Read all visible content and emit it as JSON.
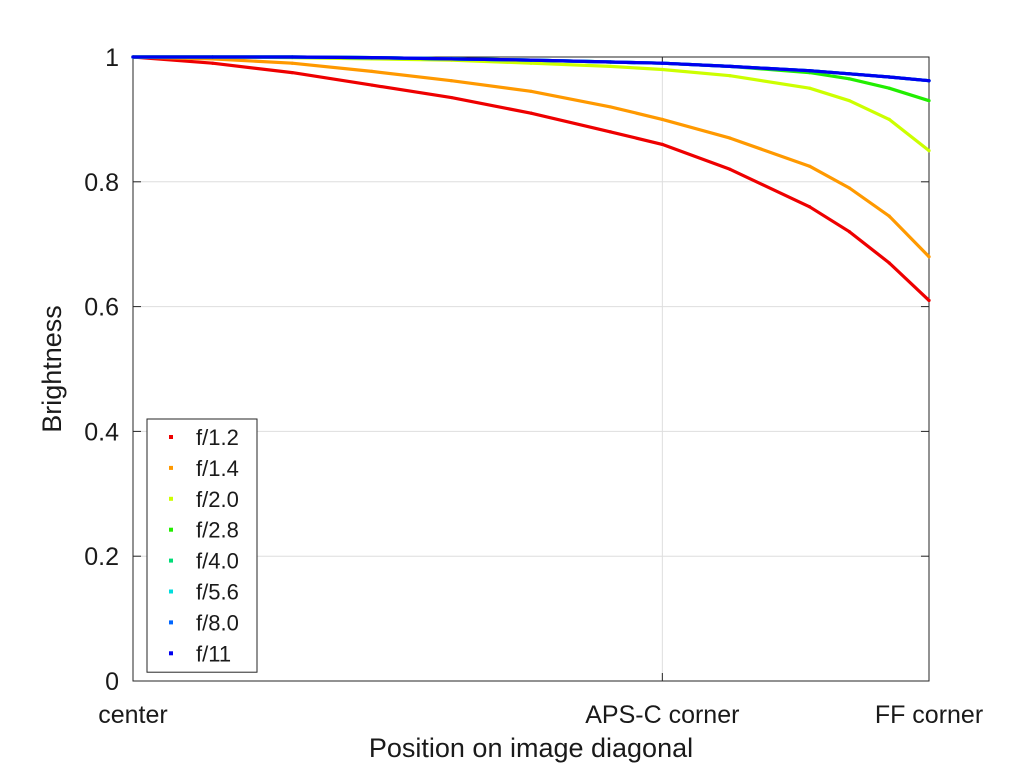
{
  "chart_data": {
    "type": "line",
    "title": "",
    "xlabel": "Position on image diagonal",
    "ylabel": "Brightness",
    "xlim": [
      0,
      1
    ],
    "ylim": [
      0,
      1
    ],
    "grid": true,
    "legend_position": "bottom-left",
    "x_ticks": [
      {
        "value": 0,
        "label": "center"
      },
      {
        "value": 0.665,
        "label": "APS-C corner"
      },
      {
        "value": 1,
        "label": "FF corner"
      }
    ],
    "y_ticks": [
      {
        "value": 0,
        "label": "0"
      },
      {
        "value": 0.2,
        "label": "0.2"
      },
      {
        "value": 0.4,
        "label": "0.4"
      },
      {
        "value": 0.6,
        "label": "0.6"
      },
      {
        "value": 0.8,
        "label": "0.8"
      },
      {
        "value": 1,
        "label": "1"
      }
    ],
    "x": [
      0,
      0.1,
      0.2,
      0.3,
      0.4,
      0.5,
      0.6,
      0.665,
      0.75,
      0.85,
      0.9,
      0.95,
      1.0
    ],
    "series": [
      {
        "name": "f/1.2",
        "color": "#ee0000",
        "values": [
          1.0,
          0.99,
          0.975,
          0.955,
          0.935,
          0.91,
          0.88,
          0.86,
          0.82,
          0.76,
          0.72,
          0.67,
          0.61
        ]
      },
      {
        "name": "f/1.4",
        "color": "#ff9900",
        "values": [
          1.0,
          0.997,
          0.99,
          0.977,
          0.962,
          0.945,
          0.92,
          0.9,
          0.87,
          0.825,
          0.79,
          0.745,
          0.68
        ]
      },
      {
        "name": "f/2.0",
        "color": "#ccff00",
        "values": [
          1.0,
          1.0,
          0.999,
          0.997,
          0.995,
          0.99,
          0.985,
          0.98,
          0.97,
          0.95,
          0.93,
          0.9,
          0.85
        ]
      },
      {
        "name": "f/2.8",
        "color": "#22ee00",
        "values": [
          1.0,
          1.0,
          1.0,
          0.999,
          0.997,
          0.995,
          0.992,
          0.99,
          0.985,
          0.975,
          0.965,
          0.95,
          0.93
        ]
      },
      {
        "name": "f/4.0",
        "color": "#00dd77",
        "values": [
          1.0,
          1.0,
          1.0,
          0.999,
          0.997,
          0.995,
          0.992,
          0.99,
          0.985,
          0.978,
          0.973,
          0.968,
          0.962
        ]
      },
      {
        "name": "f/5.6",
        "color": "#00dddd",
        "values": [
          1.0,
          1.0,
          1.0,
          0.999,
          0.997,
          0.995,
          0.992,
          0.99,
          0.985,
          0.978,
          0.973,
          0.968,
          0.962
        ]
      },
      {
        "name": "f/8.0",
        "color": "#0066ff",
        "values": [
          1.0,
          1.0,
          1.0,
          0.999,
          0.997,
          0.995,
          0.992,
          0.99,
          0.985,
          0.978,
          0.973,
          0.968,
          0.962
        ]
      },
      {
        "name": "f/11",
        "color": "#0000ee",
        "values": [
          1.0,
          1.0,
          1.0,
          0.999,
          0.997,
          0.995,
          0.992,
          0.99,
          0.985,
          0.978,
          0.973,
          0.968,
          0.962
        ]
      }
    ]
  }
}
